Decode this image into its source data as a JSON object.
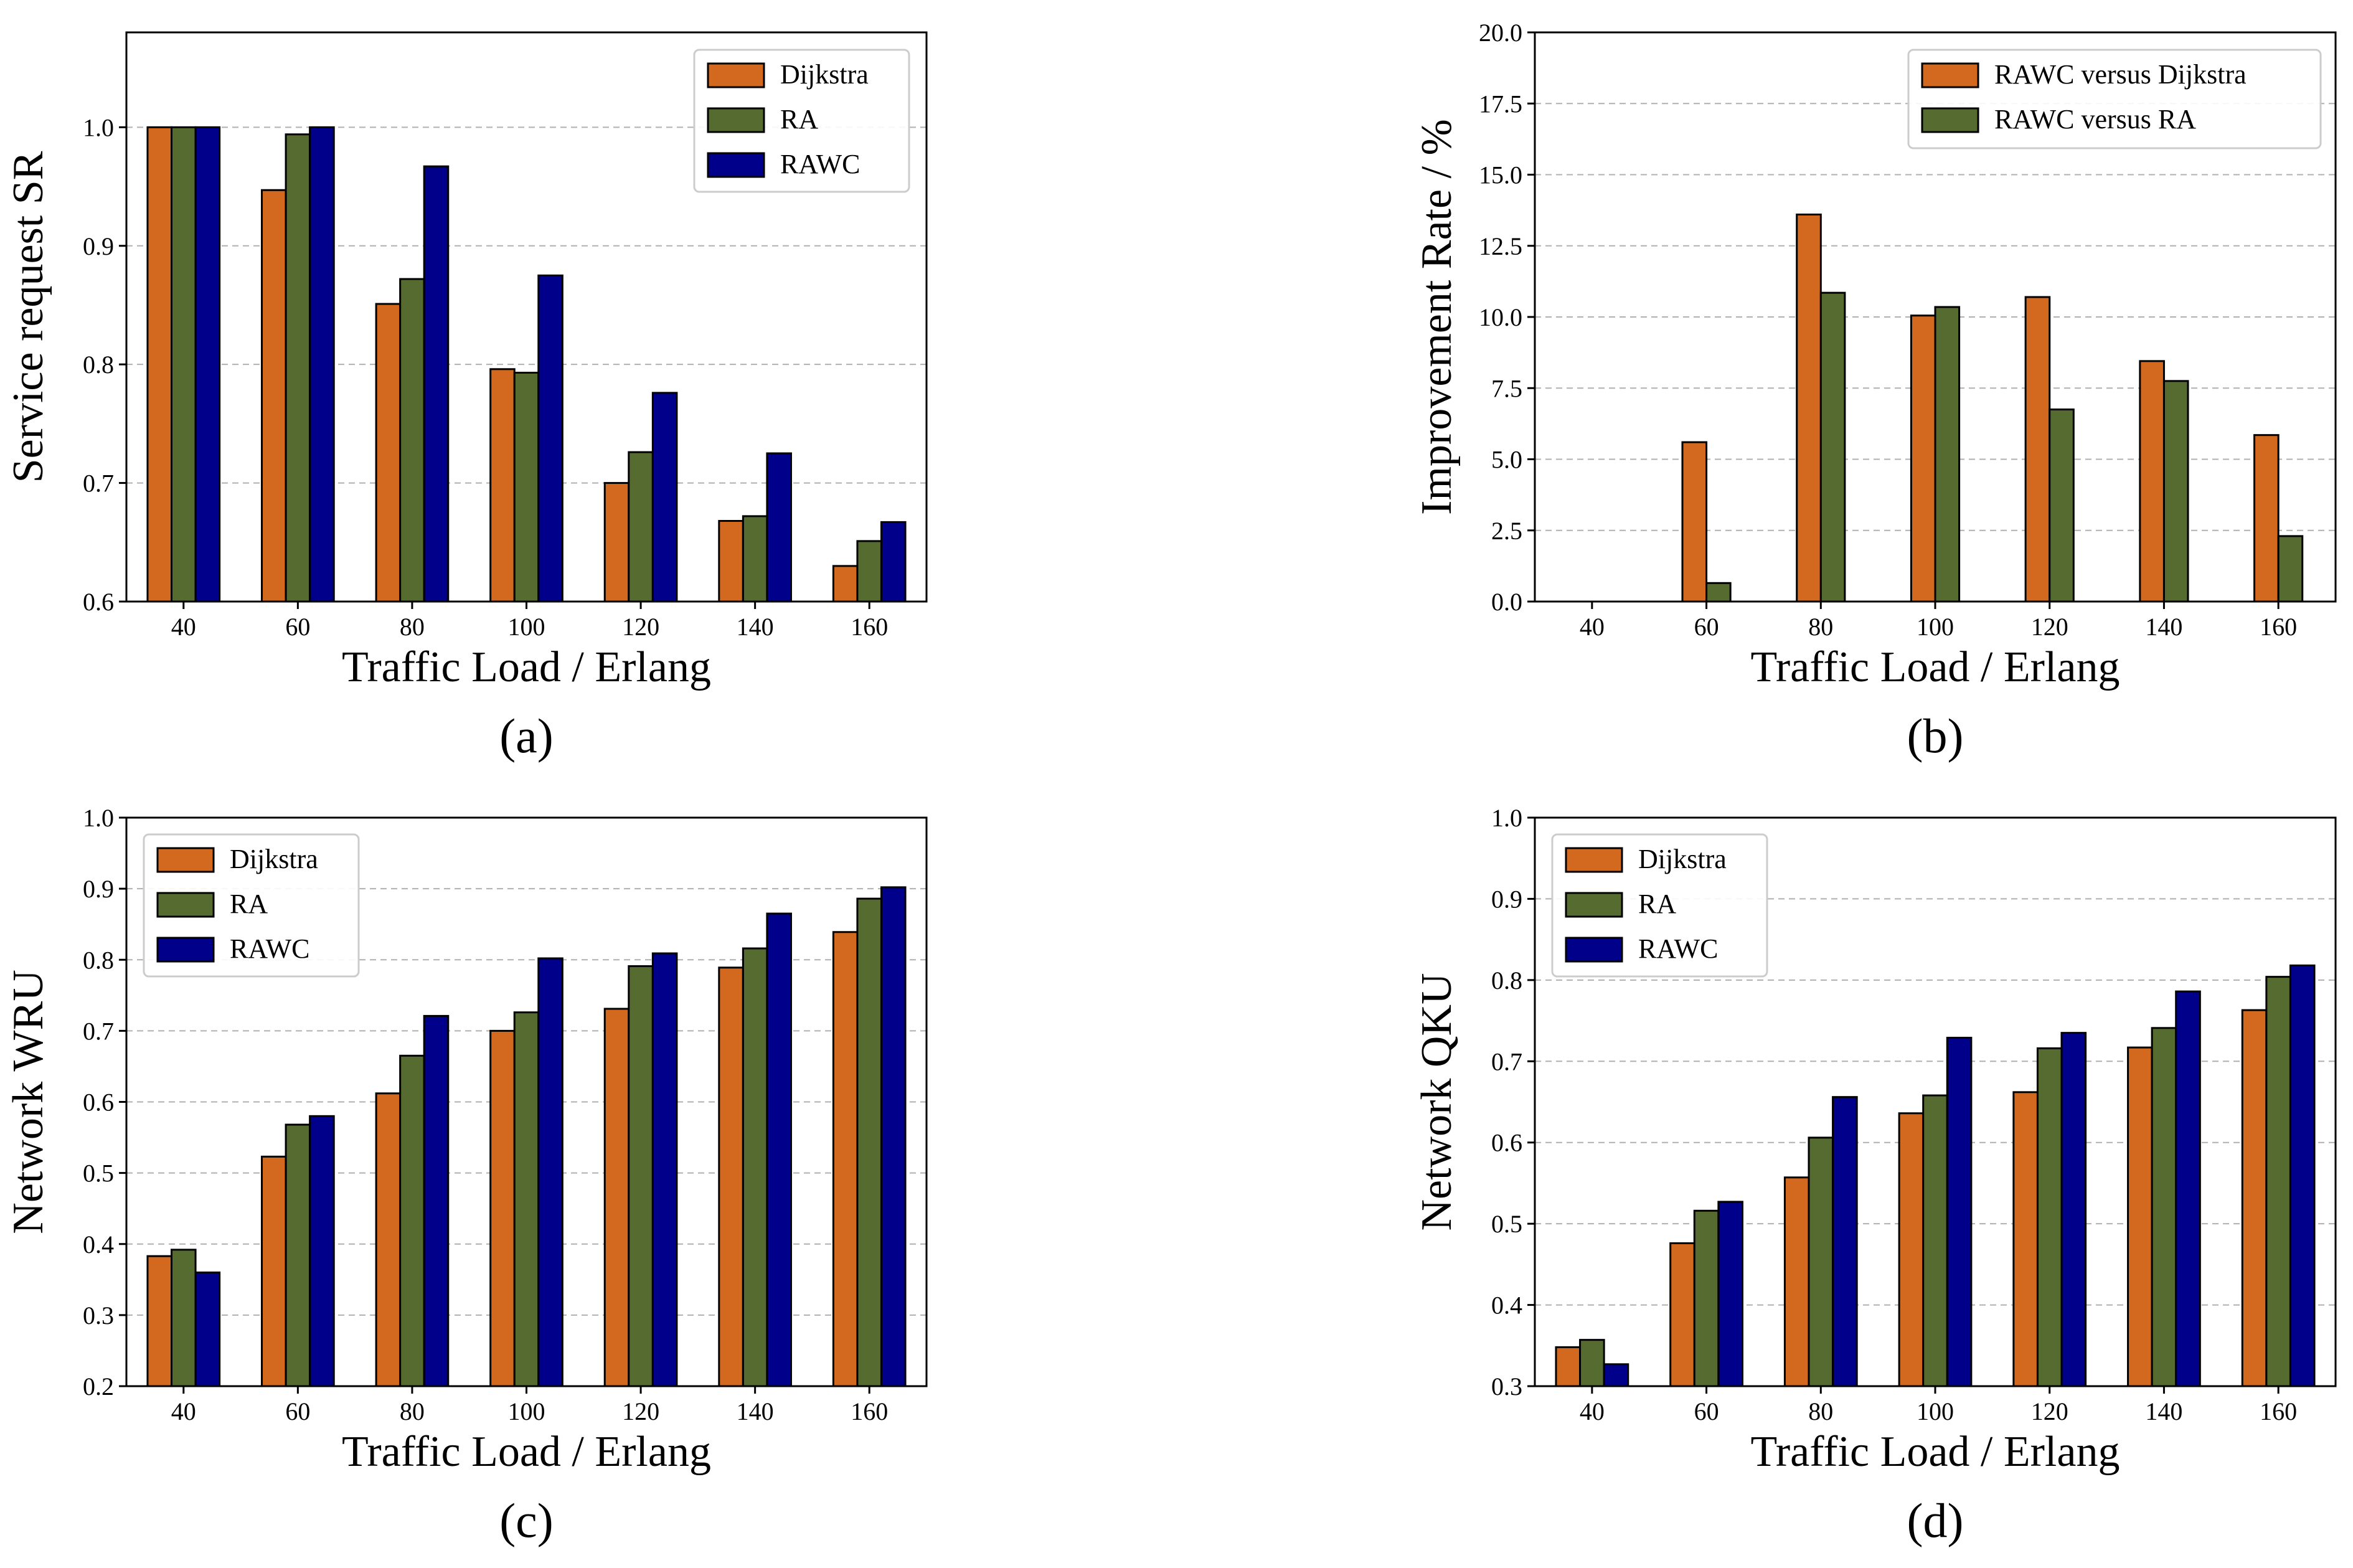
{
  "colors": {
    "series": [
      "#D2691E",
      "#556B2F",
      "#00008B"
    ],
    "grid": "#b0b0b0",
    "axis": "#000000"
  },
  "chart_data": [
    {
      "type": "bar",
      "caption": "(a)",
      "xlabel": "Traffic Load / Erlang",
      "ylabel": "Service request SR",
      "categories": [
        "40",
        "60",
        "80",
        "100",
        "120",
        "140",
        "160"
      ],
      "ylim": [
        0.6,
        1.08
      ],
      "yticks": [
        0.6,
        0.7,
        0.8,
        0.9,
        1.0
      ],
      "ytick_labels": [
        "0.6",
        "0.7",
        "0.8",
        "0.9",
        "1.0"
      ],
      "grid": true,
      "legend_position": "top-right",
      "series": [
        {
          "name": "Dijkstra",
          "values": [
            1.0,
            0.947,
            0.851,
            0.796,
            0.7,
            0.668,
            0.63
          ]
        },
        {
          "name": "RA",
          "values": [
            1.0,
            0.994,
            0.872,
            0.793,
            0.726,
            0.672,
            0.651
          ]
        },
        {
          "name": "RAWC",
          "values": [
            1.0,
            1.0,
            0.967,
            0.875,
            0.776,
            0.725,
            0.667
          ]
        }
      ]
    },
    {
      "type": "bar",
      "caption": "(b)",
      "xlabel": "Traffic Load / Erlang",
      "ylabel": "Improvement Rate / %",
      "categories": [
        "40",
        "60",
        "80",
        "100",
        "120",
        "140",
        "160"
      ],
      "ylim": [
        0,
        20
      ],
      "yticks": [
        0,
        2.5,
        5,
        7.5,
        10,
        12.5,
        15,
        17.5,
        20
      ],
      "ytick_labels": [
        "0.0",
        "2.5",
        "5.0",
        "7.5",
        "10.0",
        "12.5",
        "15.0",
        "17.5",
        "20.0"
      ],
      "grid": true,
      "legend_position": "top-right",
      "series": [
        {
          "name": "RAWC versus Dijkstra",
          "values": [
            0.0,
            5.6,
            13.6,
            10.05,
            10.7,
            8.45,
            5.85
          ]
        },
        {
          "name": "RAWC versus RA",
          "values": [
            0.0,
            0.65,
            10.85,
            10.35,
            6.75,
            7.75,
            2.3
          ]
        }
      ]
    },
    {
      "type": "bar",
      "caption": "(c)",
      "xlabel": "Traffic Load / Erlang",
      "ylabel": "Network WRU",
      "categories": [
        "40",
        "60",
        "80",
        "100",
        "120",
        "140",
        "160"
      ],
      "ylim": [
        0.2,
        1.0
      ],
      "yticks": [
        0.2,
        0.3,
        0.4,
        0.5,
        0.6,
        0.7,
        0.8,
        0.9,
        1.0
      ],
      "ytick_labels": [
        "0.2",
        "0.3",
        "0.4",
        "0.5",
        "0.6",
        "0.7",
        "0.8",
        "0.9",
        "1.0"
      ],
      "grid": true,
      "legend_position": "top-left",
      "series": [
        {
          "name": "Dijkstra",
          "values": [
            0.383,
            0.523,
            0.612,
            0.7,
            0.731,
            0.789,
            0.839
          ]
        },
        {
          "name": "RA",
          "values": [
            0.392,
            0.568,
            0.665,
            0.726,
            0.791,
            0.816,
            0.886
          ]
        },
        {
          "name": "RAWC",
          "values": [
            0.36,
            0.58,
            0.721,
            0.802,
            0.809,
            0.865,
            0.902
          ]
        }
      ]
    },
    {
      "type": "bar",
      "caption": "(d)",
      "xlabel": "Traffic Load / Erlang",
      "ylabel": "Network QKU",
      "categories": [
        "40",
        "60",
        "80",
        "100",
        "120",
        "140",
        "160"
      ],
      "ylim": [
        0.3,
        1.0
      ],
      "yticks": [
        0.3,
        0.4,
        0.5,
        0.6,
        0.7,
        0.8,
        0.9,
        1.0
      ],
      "ytick_labels": [
        "0.3",
        "0.4",
        "0.5",
        "0.6",
        "0.7",
        "0.8",
        "0.9",
        "1.0"
      ],
      "grid": true,
      "legend_position": "top-left",
      "series": [
        {
          "name": "Dijkstra",
          "values": [
            0.348,
            0.476,
            0.557,
            0.636,
            0.662,
            0.717,
            0.763
          ]
        },
        {
          "name": "RA",
          "values": [
            0.357,
            0.516,
            0.606,
            0.658,
            0.716,
            0.741,
            0.804
          ]
        },
        {
          "name": "RAWC",
          "values": [
            0.327,
            0.527,
            0.656,
            0.729,
            0.735,
            0.786,
            0.818
          ]
        }
      ]
    }
  ]
}
